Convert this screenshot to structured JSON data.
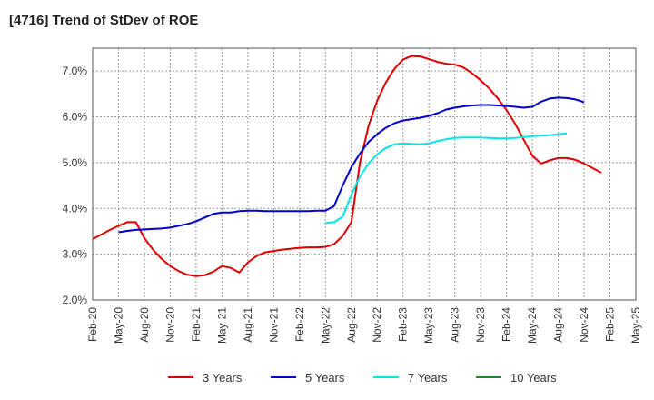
{
  "title": "[4716]  Trend of StDev of ROE",
  "chart_data": {
    "type": "line",
    "title": "[4716]  Trend of StDev of ROE",
    "xlabel": "",
    "ylabel": "",
    "ylim": [
      2.0,
      7.5
    ],
    "grid": true,
    "legend_position": "bottom",
    "x_ticks": [
      "Feb-20",
      "May-20",
      "Aug-20",
      "Nov-20",
      "Feb-21",
      "May-21",
      "Aug-21",
      "Nov-21",
      "Feb-22",
      "May-22",
      "Aug-22",
      "Nov-22",
      "Feb-23",
      "May-23",
      "Aug-23",
      "Nov-23",
      "Feb-24",
      "May-24",
      "Aug-24",
      "Nov-24",
      "Feb-25",
      "May-25"
    ],
    "y_ticks": [
      "2.0%",
      "3.0%",
      "4.0%",
      "5.0%",
      "6.0%",
      "7.0%"
    ],
    "y_tick_values": [
      2.0,
      3.0,
      4.0,
      5.0,
      6.0,
      7.0
    ],
    "series": [
      {
        "name": "3 Years",
        "color": "#dd0000",
        "start_index": 0,
        "values": [
          3.33,
          3.43,
          3.53,
          3.62,
          3.7,
          3.7,
          3.35,
          3.1,
          2.9,
          2.74,
          2.63,
          2.55,
          2.52,
          2.54,
          2.62,
          2.74,
          2.7,
          2.6,
          2.82,
          2.96,
          3.04,
          3.07,
          3.1,
          3.12,
          3.14,
          3.15,
          3.15,
          3.16,
          3.22,
          3.4,
          3.7,
          5.0,
          5.8,
          6.35,
          6.75,
          7.05,
          7.25,
          7.33,
          7.32,
          7.26,
          7.2,
          7.16,
          7.14,
          7.08,
          6.95,
          6.8,
          6.62,
          6.4,
          6.15,
          5.85,
          5.5,
          5.15,
          4.98,
          5.05,
          5.1,
          5.1,
          5.06,
          4.98,
          4.88,
          4.78
        ]
      },
      {
        "name": "5 Years",
        "color": "#0000cc",
        "start_index": 3,
        "values": [
          3.48,
          3.51,
          3.53,
          3.54,
          3.55,
          3.56,
          3.58,
          3.62,
          3.66,
          3.72,
          3.8,
          3.88,
          3.91,
          3.91,
          3.94,
          3.95,
          3.95,
          3.94,
          3.94,
          3.94,
          3.94,
          3.94,
          3.94,
          3.95,
          3.95,
          4.05,
          4.5,
          4.9,
          5.2,
          5.45,
          5.62,
          5.76,
          5.86,
          5.92,
          5.95,
          5.98,
          6.02,
          6.08,
          6.16,
          6.2,
          6.23,
          6.25,
          6.26,
          6.26,
          6.25,
          6.24,
          6.22,
          6.2,
          6.22,
          6.33,
          6.4,
          6.42,
          6.41,
          6.38,
          6.32
        ]
      },
      {
        "name": "7 Years",
        "color": "#00e5e5",
        "start_index": 27,
        "values": [
          3.68,
          3.7,
          3.82,
          4.3,
          4.7,
          4.98,
          5.18,
          5.32,
          5.4,
          5.42,
          5.41,
          5.4,
          5.42,
          5.47,
          5.51,
          5.54,
          5.55,
          5.55,
          5.55,
          5.54,
          5.53,
          5.53,
          5.54,
          5.56,
          5.58,
          5.59,
          5.6,
          5.62,
          5.64
        ]
      },
      {
        "name": "10 Years",
        "color": "#228822",
        "start_index": 0,
        "values": []
      }
    ]
  }
}
